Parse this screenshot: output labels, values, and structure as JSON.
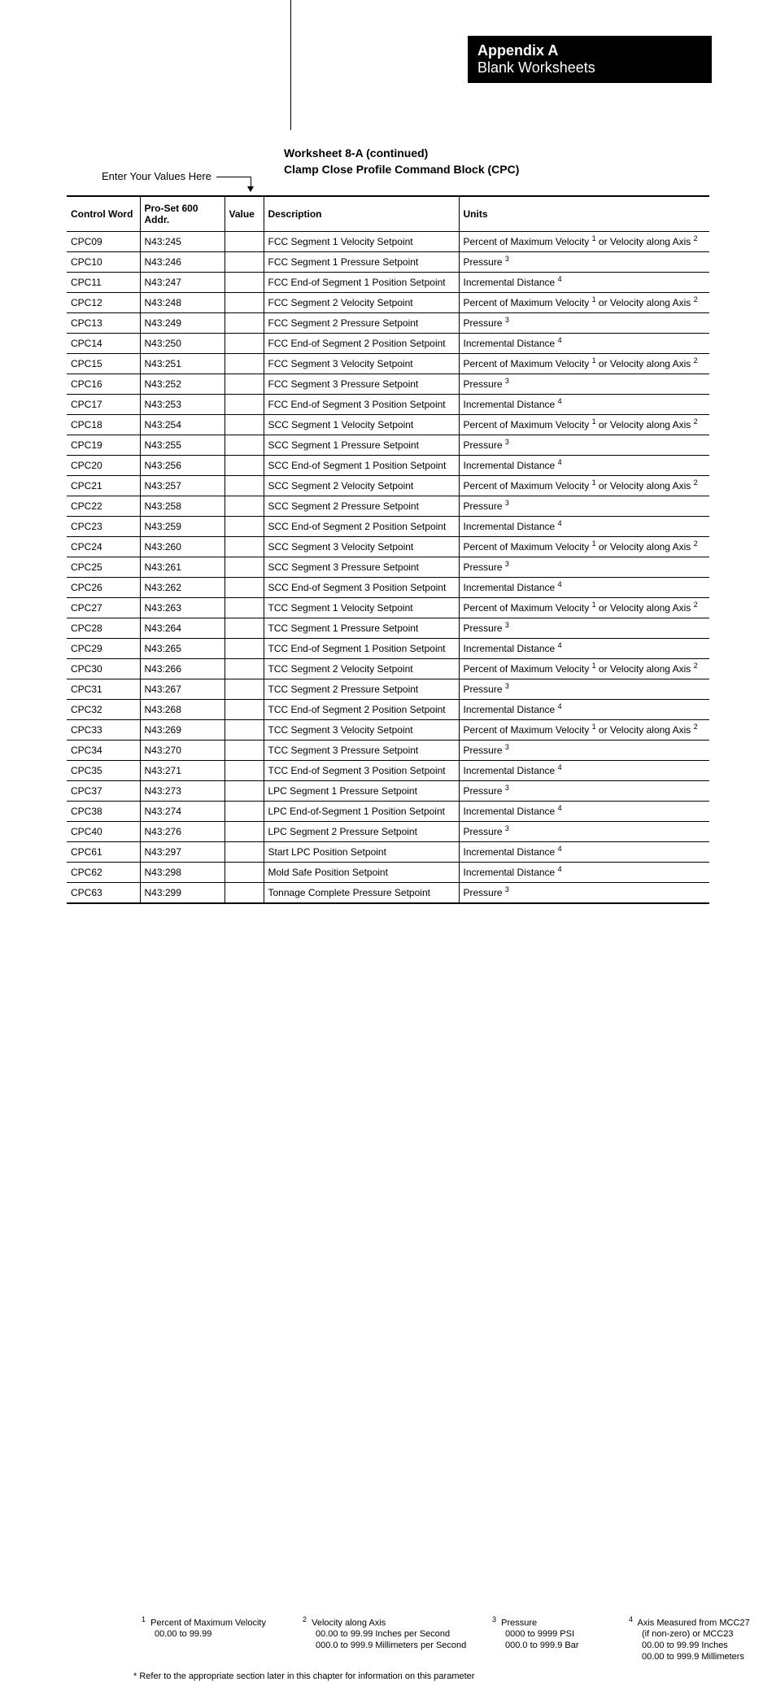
{
  "header": {
    "appendix": "Appendix A",
    "subtitle": "Blank Worksheets"
  },
  "title1": "Worksheet 8-A (continued)",
  "title2": "Clamp Close Profile Command Block (CPC)",
  "enter_label": "Enter Your Values Here",
  "table": {
    "headers": {
      "cw": "Control Word",
      "addr": "Pro-Set 600 Addr.",
      "val": "Value",
      "desc": "Description",
      "unit": "Units"
    },
    "units": {
      "velocity": {
        "pre": "Percent of Maximum Velocity ",
        "sup1": "1",
        "mid": "  or Velocity along Axis ",
        "sup2": "2"
      },
      "pressure": {
        "pre": "Pressure ",
        "sup1": "3"
      },
      "distance": {
        "pre": "Incremental Distance ",
        "sup1": "4"
      }
    },
    "rows": [
      {
        "cw": "CPC09",
        "addr": "N43:245",
        "desc": "FCC Segment 1 Velocity Setpoint",
        "u": "velocity"
      },
      {
        "cw": "CPC10",
        "addr": "N43:246",
        "desc": "FCC Segment 1 Pressure Setpoint",
        "u": "pressure"
      },
      {
        "cw": "CPC11",
        "addr": "N43:247",
        "desc": "FCC End-of Segment 1 Position Setpoint",
        "u": "distance"
      },
      {
        "cw": "CPC12",
        "addr": "N43:248",
        "desc": "FCC Segment 2 Velocity Setpoint",
        "u": "velocity"
      },
      {
        "cw": "CPC13",
        "addr": "N43:249",
        "desc": "FCC Segment 2 Pressure Setpoint",
        "u": "pressure"
      },
      {
        "cw": "CPC14",
        "addr": "N43:250",
        "desc": "FCC End-of Segment 2 Position Setpoint",
        "u": "distance"
      },
      {
        "cw": "CPC15",
        "addr": "N43:251",
        "desc": "FCC Segment 3 Velocity Setpoint",
        "u": "velocity"
      },
      {
        "cw": "CPC16",
        "addr": "N43:252",
        "desc": "FCC Segment 3 Pressure Setpoint",
        "u": "pressure"
      },
      {
        "cw": "CPC17",
        "addr": "N43:253",
        "desc": "FCC End-of Segment 3 Position Setpoint",
        "u": "distance"
      },
      {
        "cw": "CPC18",
        "addr": "N43:254",
        "desc": "SCC Segment 1 Velocity Setpoint",
        "u": "velocity"
      },
      {
        "cw": "CPC19",
        "addr": "N43:255",
        "desc": "SCC Segment 1 Pressure Setpoint",
        "u": "pressure"
      },
      {
        "cw": "CPC20",
        "addr": "N43:256",
        "desc": "SCC End-of Segment 1 Position Setpoint",
        "u": "distance"
      },
      {
        "cw": "CPC21",
        "addr": "N43:257",
        "desc": "SCC Segment 2 Velocity Setpoint",
        "u": "velocity"
      },
      {
        "cw": "CPC22",
        "addr": "N43:258",
        "desc": "SCC Segment 2 Pressure Setpoint",
        "u": "pressure"
      },
      {
        "cw": "CPC23",
        "addr": "N43:259",
        "desc": "SCC End-of Segment 2 Position Setpoint",
        "u": "distance"
      },
      {
        "cw": "CPC24",
        "addr": "N43:260",
        "desc": "SCC Segment 3 Velocity Setpoint",
        "u": "velocity"
      },
      {
        "cw": "CPC25",
        "addr": "N43:261",
        "desc": "SCC Segment 3 Pressure Setpoint",
        "u": "pressure"
      },
      {
        "cw": "CPC26",
        "addr": "N43:262",
        "desc": "SCC End-of Segment 3 Position Setpoint",
        "u": "distance"
      },
      {
        "cw": "CPC27",
        "addr": "N43:263",
        "desc": "TCC Segment 1 Velocity Setpoint",
        "u": "velocity"
      },
      {
        "cw": "CPC28",
        "addr": "N43:264",
        "desc": "TCC Segment 1 Pressure Setpoint",
        "u": "pressure"
      },
      {
        "cw": "CPC29",
        "addr": "N43:265",
        "desc": "TCC End-of Segment 1 Position Setpoint",
        "u": "distance"
      },
      {
        "cw": "CPC30",
        "addr": "N43:266",
        "desc": "TCC Segment 2 Velocity Setpoint",
        "u": "velocity"
      },
      {
        "cw": "CPC31",
        "addr": "N43:267",
        "desc": "TCC Segment 2 Pressure Setpoint",
        "u": "pressure"
      },
      {
        "cw": "CPC32",
        "addr": "N43:268",
        "desc": "TCC End-of Segment 2 Position Setpoint",
        "u": "distance"
      },
      {
        "cw": "CPC33",
        "addr": "N43:269",
        "desc": "TCC Segment 3 Velocity Setpoint",
        "u": "velocity"
      },
      {
        "cw": "CPC34",
        "addr": "N43:270",
        "desc": "TCC Segment 3 Pressure Setpoint",
        "u": "pressure"
      },
      {
        "cw": "CPC35",
        "addr": "N43:271",
        "desc": "TCC End-of Segment 3 Position Setpoint",
        "u": "distance"
      },
      {
        "cw": "CPC37",
        "addr": "N43:273",
        "desc": "LPC Segment 1 Pressure Setpoint",
        "u": "pressure"
      },
      {
        "cw": "CPC38",
        "addr": "N43:274",
        "desc": "LPC End-of-Segment 1 Position Setpoint",
        "u": "distance"
      },
      {
        "cw": "CPC40",
        "addr": "N43:276",
        "desc": "LPC Segment 2 Pressure Setpoint",
        "u": "pressure"
      },
      {
        "cw": "CPC61",
        "addr": "N43:297",
        "desc": "Start LPC Position Setpoint",
        "u": "distance"
      },
      {
        "cw": "CPC62",
        "addr": "N43:298",
        "desc": "Mold Safe Position Setpoint",
        "u": "distance"
      },
      {
        "cw": "CPC63",
        "addr": "N43:299",
        "desc": "Tonnage Complete Pressure Setpoint",
        "u": "pressure"
      }
    ]
  },
  "footnotes": {
    "fn1": {
      "sup": "1",
      "title": "Percent of Maximum Velocity",
      "lines": [
        "00.00 to 99.99"
      ]
    },
    "fn2": {
      "sup": "2",
      "title": "Velocity along Axis",
      "lines": [
        "00.00 to 99.99 Inches per Second",
        "000.0 to 999.9 Millimeters per Second"
      ]
    },
    "fn3": {
      "sup": "3",
      "title": "Pressure",
      "lines": [
        "0000 to 9999 PSI",
        "000.0 to 999.9 Bar"
      ]
    },
    "fn4": {
      "sup": "4",
      "title": "Axis Measured from MCC27",
      "lines": [
        "(if non-zero) or MCC23",
        "00.00 to 99.99 Inches",
        "00.00 to 999.9 Millimeters"
      ]
    }
  },
  "footref": "* Refer to the appropriate section later in this chapter for information on this parameter"
}
